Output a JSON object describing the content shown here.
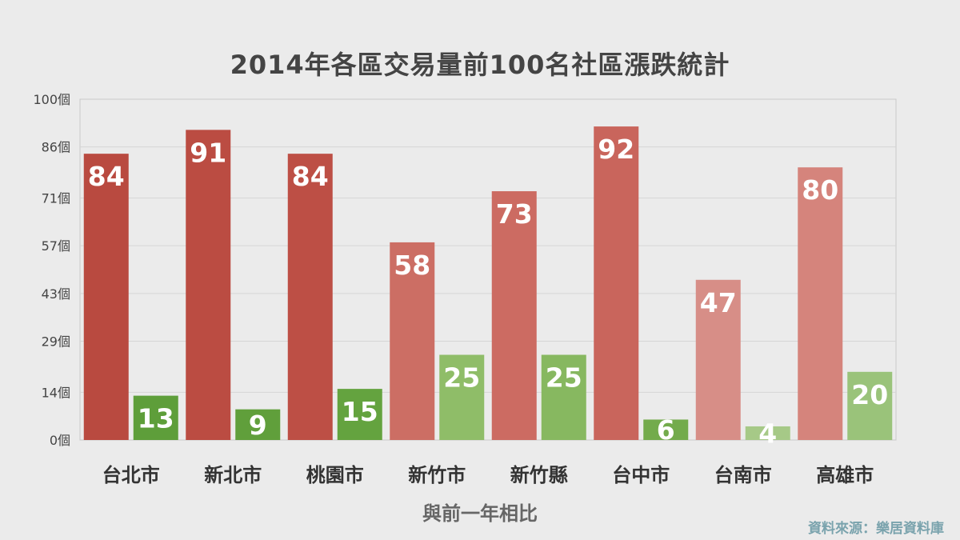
{
  "chart_data": {
    "type": "bar",
    "title": "2014年各區交易量前100名社區漲跌統計",
    "xlabel": "與前一年相比",
    "ylabel": "",
    "ylim": [
      0,
      100
    ],
    "y_ticks": [
      0,
      14,
      29,
      43,
      57,
      71,
      86,
      100
    ],
    "y_tick_labels": [
      "0個",
      "14個",
      "29個",
      "43個",
      "57個",
      "71個",
      "86個",
      "100個"
    ],
    "categories": [
      "台北市",
      "新北市",
      "桃園市",
      "新竹市",
      "新竹縣",
      "台中市",
      "台南市",
      "高雄市"
    ],
    "series": [
      {
        "values": [
          84,
          91,
          84,
          58,
          73,
          92,
          47,
          80
        ],
        "colors": [
          "#b94a40",
          "#bb4c42",
          "#bd4f45",
          "#cc6e64",
          "#cc6b62",
          "#c9655c",
          "#d78e87",
          "#d5847c"
        ]
      },
      {
        "values": [
          13,
          9,
          15,
          25,
          25,
          6,
          4,
          20
        ],
        "colors": [
          "#5e9e3a",
          "#609f3b",
          "#64a33f",
          "#8fbd68",
          "#87b860",
          "#73ab4c",
          "#a6c987",
          "#9ac37a"
        ]
      }
    ],
    "data_labels": true,
    "grid": true,
    "legend": "none"
  },
  "source": "資料來源：樂居資料庫"
}
